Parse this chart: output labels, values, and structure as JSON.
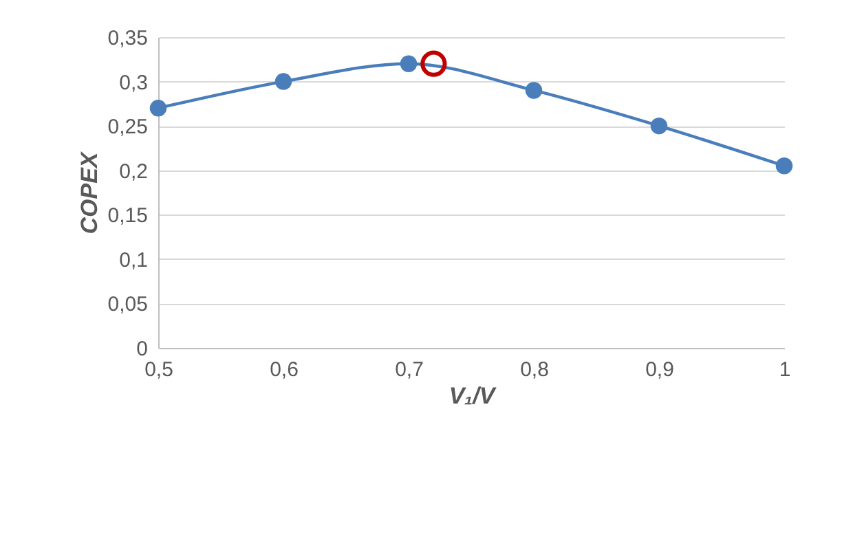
{
  "chart_data": {
    "type": "line",
    "xlabel": "V₁/V",
    "ylabel": "COPEX",
    "x": [
      0.5,
      0.6,
      0.7,
      0.8,
      0.9,
      1
    ],
    "series": [
      {
        "color": "#4a7ebb",
        "values": [
          0.27,
          0.3,
          0.32,
          0.29,
          0.25,
          0.205
        ],
        "marker": "circle"
      },
      {
        "type": "scatter",
        "color": "#c00000",
        "x": [
          0.72
        ],
        "values": [
          0.32
        ],
        "marker": "circle"
      }
    ],
    "xlim": [
      0.5,
      1
    ],
    "ylim": [
      0,
      0.35
    ],
    "xticks": [
      {
        "value": 0.5,
        "label": "0,5"
      },
      {
        "value": 0.6,
        "label": "0,6"
      },
      {
        "value": 0.7,
        "label": "0,7"
      },
      {
        "value": 0.8,
        "label": "0,8"
      },
      {
        "value": 0.9,
        "label": "0,9"
      },
      1
    ],
    "yticks": [
      0,
      {
        "value": 0.05,
        "label": "0,05"
      },
      {
        "value": 0.1,
        "label": "0,1"
      },
      {
        "value": 0.15,
        "label": "0,15"
      },
      {
        "value": 0.2,
        "label": "0,2"
      },
      {
        "value": 0.25,
        "label": "0,25"
      },
      {
        "value": 0.3,
        "label": "0,3"
      },
      {
        "value": 0.35,
        "label": "0,35"
      }
    ],
    "grid": "y",
    "line_style": "solid"
  }
}
